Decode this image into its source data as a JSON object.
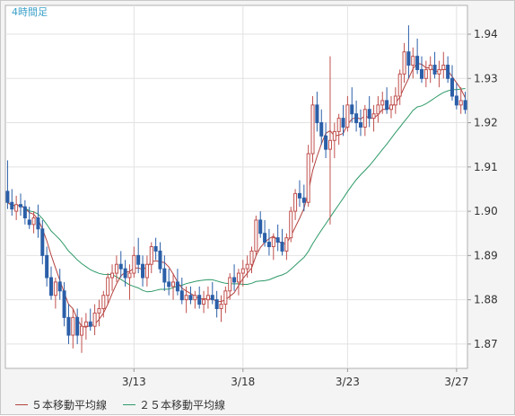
{
  "chart_data": {
    "type": "candlestick",
    "title": "4時間足",
    "timeframe": "4 hour",
    "y_axis": {
      "ticks": [
        "1.94",
        "1.93",
        "1.92",
        "1.91",
        "1.90",
        "1.89",
        "1.88",
        "1.87"
      ],
      "ylim": [
        1.8645,
        1.9465
      ],
      "position": "right"
    },
    "x_axis": {
      "ticks": [
        {
          "label": "3/13",
          "index": 29
        },
        {
          "label": "3/18",
          "index": 54
        },
        {
          "label": "3/23",
          "index": 78
        },
        {
          "label": "3/27",
          "index": 103
        }
      ]
    },
    "grid": true,
    "colors": {
      "up": "#c0504d",
      "down": "#2b5fa8",
      "ma5": "#b3413e",
      "ma25": "#2e9a68"
    },
    "candles_ohlc": [
      [
        1.9045,
        1.9115,
        1.9005,
        1.902
      ],
      [
        1.902,
        1.905,
        1.899,
        1.9005
      ],
      [
        1.9,
        1.9035,
        1.898,
        1.9015
      ],
      [
        1.9015,
        1.904,
        1.899,
        1.901
      ],
      [
        1.901,
        1.9025,
        1.897,
        1.8985
      ],
      [
        1.898,
        1.901,
        1.896,
        1.897
      ],
      [
        1.897,
        1.9,
        1.895,
        1.8985
      ],
      [
        1.8985,
        1.9015,
        1.894,
        1.896
      ],
      [
        1.896,
        1.898,
        1.888,
        1.89
      ],
      [
        1.89,
        1.892,
        1.883,
        1.885
      ],
      [
        1.885,
        1.8875,
        1.88,
        1.881
      ],
      [
        1.881,
        1.885,
        1.878,
        1.884
      ],
      [
        1.884,
        1.887,
        1.88,
        1.882
      ],
      [
        1.882,
        1.884,
        1.874,
        1.876
      ],
      [
        1.876,
        1.879,
        1.87,
        1.872
      ],
      [
        1.872,
        1.878,
        1.869,
        1.876
      ],
      [
        1.876,
        1.878,
        1.87,
        1.872
      ],
      [
        1.872,
        1.876,
        1.868,
        1.874
      ],
      [
        1.874,
        1.877,
        1.871,
        1.875
      ],
      [
        1.875,
        1.878,
        1.873,
        1.874
      ],
      [
        1.874,
        1.879,
        1.872,
        1.877
      ],
      [
        1.877,
        1.88,
        1.874,
        1.878
      ],
      [
        1.878,
        1.882,
        1.876,
        1.881
      ],
      [
        1.881,
        1.886,
        1.879,
        1.885
      ],
      [
        1.885,
        1.888,
        1.882,
        1.886
      ],
      [
        1.886,
        1.89,
        1.884,
        1.888
      ],
      [
        1.888,
        1.891,
        1.885,
        1.887
      ],
      [
        1.887,
        1.889,
        1.883,
        1.885
      ],
      [
        1.885,
        1.888,
        1.88,
        1.886
      ],
      [
        1.886,
        1.892,
        1.885,
        1.89
      ],
      [
        1.89,
        1.894,
        1.886,
        1.888
      ],
      [
        1.888,
        1.89,
        1.883,
        1.885
      ],
      [
        1.885,
        1.89,
        1.883,
        1.888
      ],
      [
        1.888,
        1.893,
        1.886,
        1.892
      ],
      [
        1.892,
        1.894,
        1.889,
        1.891
      ],
      [
        1.891,
        1.893,
        1.886,
        1.887
      ],
      [
        1.887,
        1.89,
        1.882,
        1.884
      ],
      [
        1.884,
        1.887,
        1.881,
        1.883
      ],
      [
        1.883,
        1.886,
        1.88,
        1.884
      ],
      [
        1.884,
        1.887,
        1.881,
        1.882
      ],
      [
        1.882,
        1.885,
        1.879,
        1.88
      ],
      [
        1.88,
        1.883,
        1.877,
        1.881
      ],
      [
        1.881,
        1.883,
        1.879,
        1.88
      ],
      [
        1.88,
        1.882,
        1.878,
        1.881
      ],
      [
        1.881,
        1.883,
        1.878,
        1.879
      ],
      [
        1.879,
        1.882,
        1.877,
        1.88
      ],
      [
        1.88,
        1.883,
        1.878,
        1.881
      ],
      [
        1.881,
        1.884,
        1.879,
        1.88
      ],
      [
        1.88,
        1.882,
        1.876,
        1.878
      ],
      [
        1.878,
        1.881,
        1.875,
        1.879
      ],
      [
        1.879,
        1.883,
        1.877,
        1.882
      ],
      [
        1.882,
        1.886,
        1.88,
        1.885
      ],
      [
        1.885,
        1.888,
        1.882,
        1.884
      ],
      [
        1.884,
        1.887,
        1.881,
        1.886
      ],
      [
        1.886,
        1.889,
        1.883,
        1.887
      ],
      [
        1.887,
        1.89,
        1.885,
        1.888
      ],
      [
        1.888,
        1.892,
        1.886,
        1.891
      ],
      [
        1.891,
        1.899,
        1.89,
        1.898
      ],
      [
        1.898,
        1.9,
        1.894,
        1.895
      ],
      [
        1.895,
        1.898,
        1.892,
        1.893
      ],
      [
        1.893,
        1.896,
        1.89,
        1.892
      ],
      [
        1.892,
        1.895,
        1.889,
        1.894
      ],
      [
        1.894,
        1.897,
        1.891,
        1.893
      ],
      [
        1.893,
        1.896,
        1.89,
        1.891
      ],
      [
        1.891,
        1.895,
        1.889,
        1.894
      ],
      [
        1.894,
        1.901,
        1.893,
        1.9
      ],
      [
        1.9,
        1.905,
        1.898,
        1.904
      ],
      [
        1.904,
        1.907,
        1.901,
        1.903
      ],
      [
        1.903,
        1.906,
        1.9,
        1.902
      ],
      [
        1.902,
        1.915,
        1.901,
        1.913
      ],
      [
        1.913,
        1.926,
        1.911,
        1.924
      ],
      [
        1.924,
        1.927,
        1.918,
        1.92
      ],
      [
        1.92,
        1.923,
        1.915,
        1.917
      ],
      [
        1.917,
        1.92,
        1.912,
        1.914
      ],
      [
        1.914,
        1.935,
        1.897,
        1.916
      ],
      [
        1.916,
        1.92,
        1.912,
        1.918
      ],
      [
        1.918,
        1.922,
        1.915,
        1.921
      ],
      [
        1.921,
        1.924,
        1.917,
        1.919
      ],
      [
        1.919,
        1.926,
        1.918,
        1.924
      ],
      [
        1.924,
        1.928,
        1.92,
        1.922
      ],
      [
        1.922,
        1.925,
        1.918,
        1.92
      ],
      [
        1.92,
        1.923,
        1.917,
        1.919
      ],
      [
        1.919,
        1.924,
        1.917,
        1.923
      ],
      [
        1.923,
        1.926,
        1.919,
        1.921
      ],
      [
        1.921,
        1.924,
        1.918,
        1.922
      ],
      [
        1.922,
        1.926,
        1.92,
        1.924
      ],
      [
        1.924,
        1.927,
        1.922,
        1.925
      ],
      [
        1.925,
        1.928,
        1.922,
        1.923
      ],
      [
        1.923,
        1.926,
        1.921,
        1.924
      ],
      [
        1.924,
        1.928,
        1.922,
        1.926
      ],
      [
        1.926,
        1.932,
        1.924,
        1.931
      ],
      [
        1.931,
        1.938,
        1.929,
        1.936
      ],
      [
        1.936,
        1.942,
        1.93,
        1.933
      ],
      [
        1.933,
        1.937,
        1.93,
        1.935
      ],
      [
        1.935,
        1.939,
        1.931,
        1.932
      ],
      [
        1.932,
        1.935,
        1.929,
        1.93
      ],
      [
        1.93,
        1.934,
        1.928,
        1.932
      ],
      [
        1.932,
        1.935,
        1.929,
        1.933
      ],
      [
        1.933,
        1.936,
        1.93,
        1.931
      ],
      [
        1.931,
        1.934,
        1.928,
        1.932
      ],
      [
        1.932,
        1.936,
        1.93,
        1.933
      ],
      [
        1.933,
        1.935,
        1.929,
        1.93
      ],
      [
        1.93,
        1.933,
        1.925,
        1.926
      ],
      [
        1.926,
        1.929,
        1.923,
        1.924
      ],
      [
        1.924,
        1.928,
        1.922,
        1.925
      ],
      [
        1.925,
        1.927,
        1.922,
        1.923
      ]
    ],
    "legend": [
      {
        "key": "ma5",
        "label": "５本移動平均線"
      },
      {
        "key": "ma25",
        "label": "２５本移動平均線"
      }
    ]
  }
}
